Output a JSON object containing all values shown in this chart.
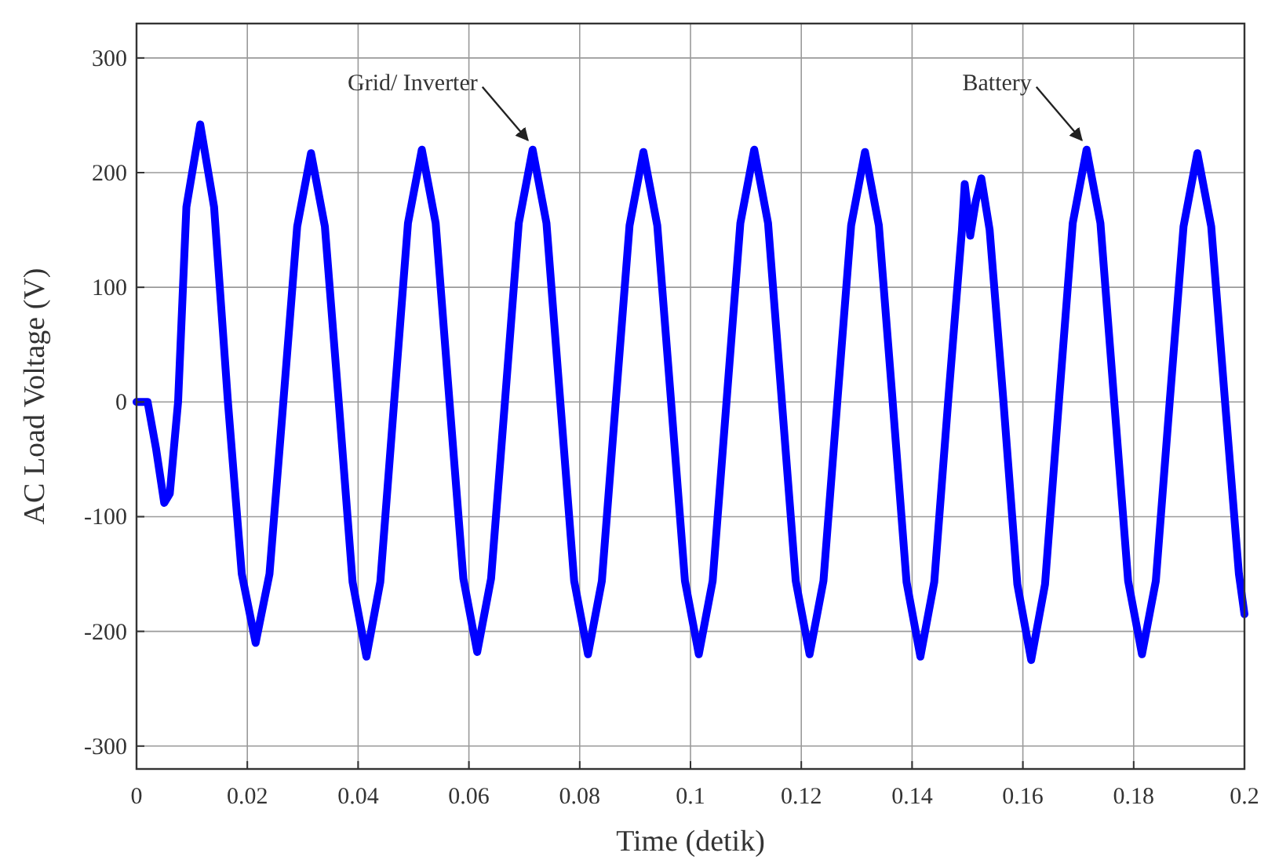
{
  "chart_data": {
    "type": "line",
    "xlabel": "Time (detik)",
    "ylabel": "AC Load Voltage (V)",
    "xlim": [
      0,
      0.2
    ],
    "xticks": [
      0,
      0.02,
      0.04,
      0.06,
      0.08,
      0.1,
      0.12,
      0.14,
      0.16,
      0.18,
      0.2
    ],
    "ylim": [
      -320,
      330
    ],
    "yticks": [
      -300,
      -200,
      -100,
      0,
      100,
      200,
      300
    ],
    "grid": true,
    "marker": "none",
    "line_style": "solid",
    "annotations": [
      {
        "text": "Grid/ Inverter",
        "x": 0.0715,
        "y": 220
      },
      {
        "text": "Battery",
        "x": 0.1715,
        "y": 220
      }
    ],
    "series": [
      {
        "color": "#0000ff",
        "x": [
          0,
          0.002,
          0.0035,
          0.005,
          0.006,
          0.0075,
          0.009,
          0.0115,
          0.014,
          0.0165,
          0.019,
          0.0215,
          0.024,
          0.0265,
          0.029,
          0.0315,
          0.034,
          0.0365,
          0.039,
          0.0415,
          0.044,
          0.0465,
          0.049,
          0.0515,
          0.054,
          0.0565,
          0.059,
          0.0615,
          0.064,
          0.0665,
          0.069,
          0.0715,
          0.074,
          0.0765,
          0.079,
          0.0815,
          0.084,
          0.0865,
          0.089,
          0.0915,
          0.094,
          0.0965,
          0.099,
          0.1015,
          0.104,
          0.1065,
          0.109,
          0.1115,
          0.114,
          0.1165,
          0.119,
          0.1215,
          0.124,
          0.1265,
          0.129,
          0.1315,
          0.134,
          0.1365,
          0.139,
          0.1415,
          0.144,
          0.1465,
          0.149,
          0.1495,
          0.15,
          0.1505,
          0.1515,
          0.1525,
          0.154,
          0.1565,
          0.159,
          0.1615,
          0.164,
          0.1665,
          0.169,
          0.1715,
          0.174,
          0.1765,
          0.179,
          0.1815,
          0.184,
          0.1865,
          0.189,
          0.1915,
          0.194,
          0.1965,
          0.199,
          0.2
        ],
        "values": [
          0,
          0,
          -40,
          -88,
          -80,
          0,
          170,
          242,
          170,
          0,
          -150,
          -210,
          -150,
          0,
          153,
          217,
          153,
          0,
          -157,
          -222,
          -157,
          0,
          156,
          220,
          156,
          0,
          -154,
          -218,
          -154,
          0,
          156,
          220,
          156,
          0,
          -156,
          -220,
          -156,
          0,
          154,
          218,
          154,
          0,
          -156,
          -220,
          -156,
          0,
          156,
          220,
          156,
          0,
          -156,
          -220,
          -156,
          0,
          154,
          218,
          154,
          0,
          -157,
          -222,
          -157,
          0,
          150,
          190,
          170,
          145,
          175,
          195,
          150,
          0,
          -159,
          -225,
          -159,
          0,
          156,
          220,
          156,
          0,
          -156,
          -220,
          -156,
          0,
          153,
          217,
          153,
          0,
          -150,
          -185
        ]
      }
    ]
  }
}
